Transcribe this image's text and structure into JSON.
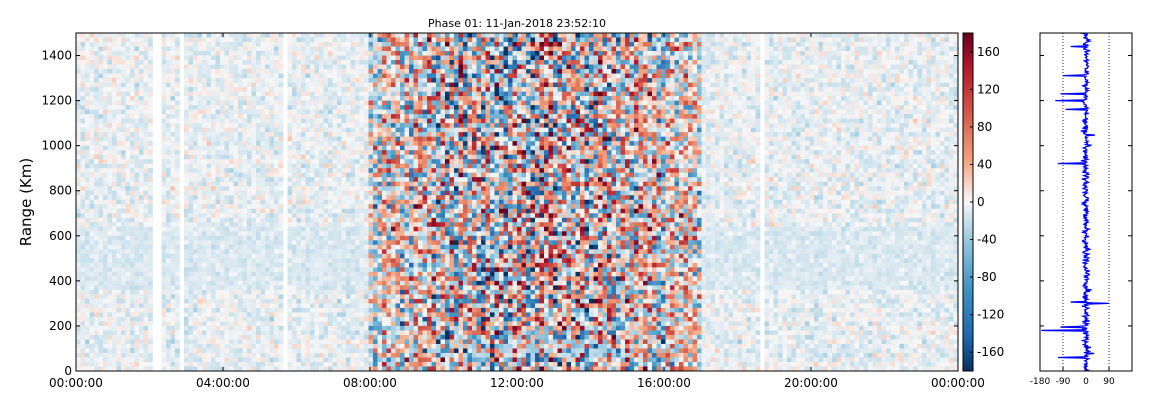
{
  "chart_data": [
    {
      "type": "heatmap",
      "title": "Phase 01: 11-Jan-2018 23:52:10",
      "xlabel": "",
      "ylabel": "Range (Km)",
      "x_range": [
        "00:00:00",
        "24:00:00"
      ],
      "y_range": [
        0,
        1500
      ],
      "x_ticks": [
        "00:00:00",
        "04:00:00",
        "08:00:00",
        "12:00:00",
        "16:00:00",
        "20:00:00",
        "00:00:00"
      ],
      "y_ticks": [
        0,
        200,
        400,
        600,
        800,
        1000,
        1200,
        1400
      ],
      "colormap": "RdBu_r",
      "color_range": [
        -180,
        180
      ],
      "colorbar_ticks": [
        160,
        120,
        80,
        40,
        0,
        -40,
        -80,
        -120,
        -160
      ],
      "data_gaps_hours": [
        [
          2.05,
          2.35
        ],
        [
          2.85,
          2.95
        ],
        [
          4.0,
          4.05
        ],
        [
          5.6,
          5.7
        ],
        [
          18.65,
          18.75
        ]
      ],
      "high_variance_hours": [
        8.0,
        17.0
      ]
    },
    {
      "type": "line",
      "xlabel": "",
      "ylabel": "",
      "x_ticks": [
        -180,
        -90,
        0,
        90
      ],
      "xlim": [
        -180,
        180
      ],
      "ylim": [
        0,
        1500
      ],
      "grid": "dotted vertical at -90 and 90",
      "series_color": "#0000ff"
    }
  ]
}
